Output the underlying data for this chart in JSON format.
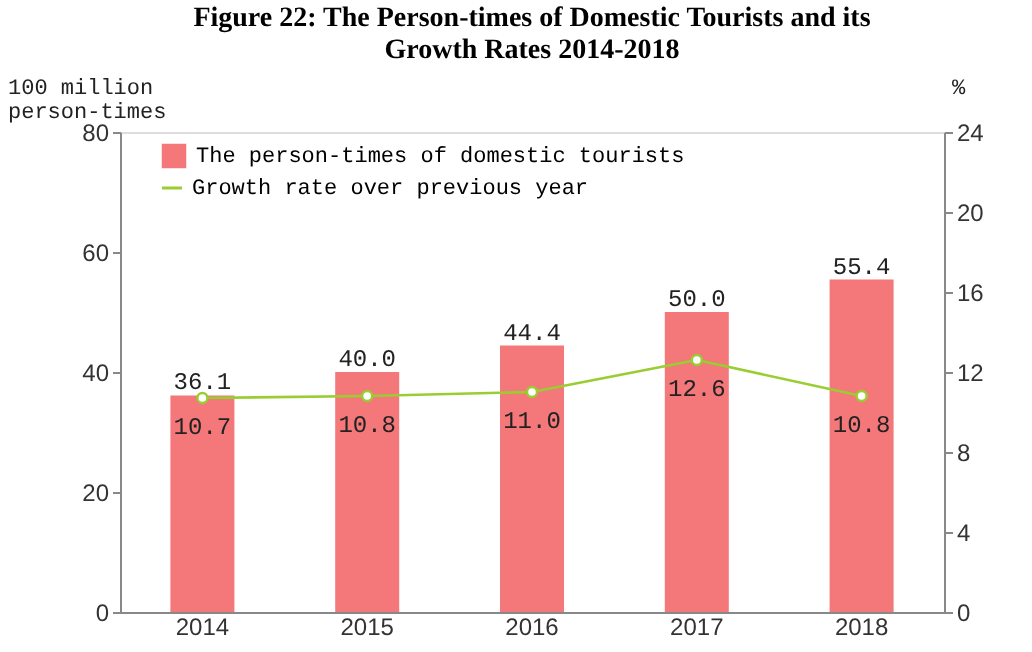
{
  "chart_data": {
    "type": "bar",
    "title": "Figure 22: The Person-times of Domestic Tourists and its Growth Rates 2014-2018",
    "categories": [
      "2014",
      "2015",
      "2016",
      "2017",
      "2018"
    ],
    "series": [
      {
        "name": "The person-times of domestic tourists",
        "color": "#f4777a",
        "values": [
          36.1,
          40.0,
          44.4,
          50.0,
          55.4
        ],
        "value_labels": [
          "36.1",
          "40.0",
          "44.4",
          "50.0",
          "55.4"
        ]
      },
      {
        "name": "Growth rate over previous year",
        "type": "line",
        "axis": "y2",
        "color": "#9acd32",
        "values": [
          10.7,
          10.8,
          11.0,
          12.6,
          10.8
        ],
        "value_labels": [
          "10.7",
          "10.8",
          "11.0",
          "12.6",
          "10.8"
        ]
      }
    ],
    "ylabel": "100 million person-times",
    "y2label": "%",
    "ylim": [
      0,
      80
    ],
    "yticks": [
      0,
      20,
      40,
      60,
      80
    ],
    "y2lim": [
      0,
      24
    ],
    "y2ticks": [
      0,
      4,
      8,
      12,
      16,
      20,
      24
    ],
    "legend": "top left",
    "grid": false,
    "marker": "circle"
  }
}
